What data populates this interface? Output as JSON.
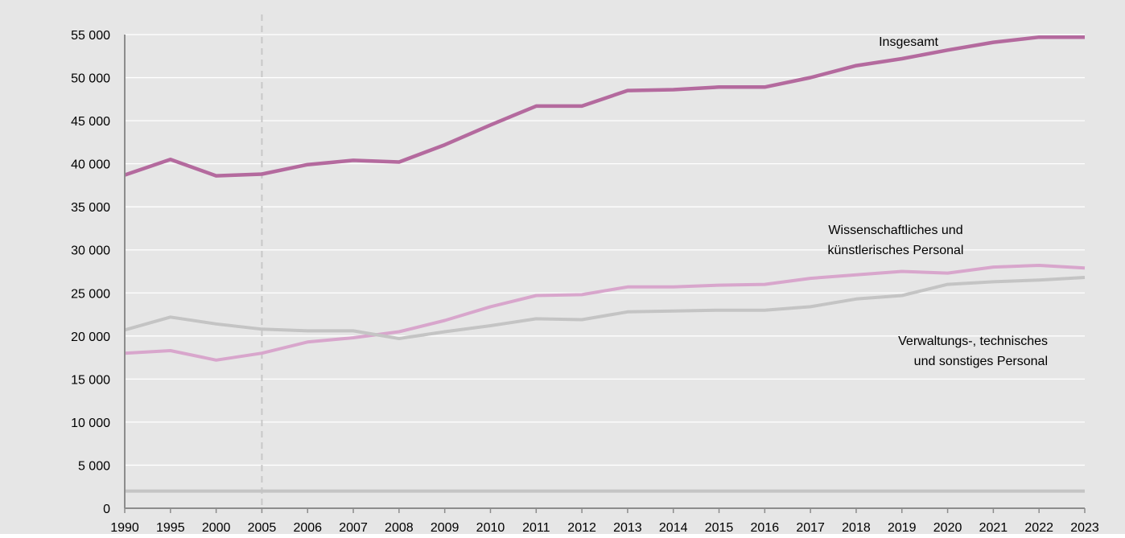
{
  "chart_data": {
    "type": "line",
    "title": "",
    "xlabel": "",
    "ylabel": "",
    "categories": [
      "1990",
      "1995",
      "2000",
      "2005",
      "2006",
      "2007",
      "2008",
      "2009",
      "2010",
      "2011",
      "2012",
      "2013",
      "2014",
      "2015",
      "2016",
      "2017",
      "2018",
      "2019",
      "2020",
      "2021",
      "2022",
      "2023"
    ],
    "y_ticks": [
      "0",
      "5 000",
      "10 000",
      "15 000",
      "20 000",
      "25 000",
      "30 000",
      "35 000",
      "40 000",
      "45 000",
      "50 000",
      "55 000"
    ],
    "ylim": [
      0,
      55000
    ],
    "grid": true,
    "axis_break": "2000-2005 (dashed vertical marker at 2005)",
    "series": [
      {
        "name": "Insgesamt",
        "color": "#b46a9e",
        "values": [
          38700,
          40500,
          38600,
          38800,
          39900,
          40400,
          40200,
          42200,
          44500,
          46700,
          46700,
          48500,
          48600,
          48900,
          48900,
          50000,
          51400,
          52200,
          53200,
          54100,
          54700,
          54700
        ]
      },
      {
        "name": "Wissenschaftliches und künstlerisches Personal",
        "color": "#d8a6cc",
        "values": [
          18000,
          18300,
          17200,
          18000,
          19300,
          19800,
          20500,
          21800,
          23400,
          24700,
          24800,
          25700,
          25700,
          25900,
          26000,
          26700,
          27100,
          27500,
          27300,
          28000,
          28200,
          27900
        ]
      },
      {
        "name": "Verwaltungs-, technisches und sonstiges Personal",
        "color": "#c4c4c4",
        "values": [
          20700,
          22200,
          21400,
          20800,
          20600,
          20600,
          19700,
          20500,
          21200,
          22000,
          21900,
          22800,
          22900,
          23000,
          23000,
          23400,
          24300,
          24700,
          26000,
          26300,
          26500,
          26800
        ]
      },
      {
        "name": "",
        "color": "#c4c4c4",
        "values": [
          2000,
          2000,
          2000,
          2000,
          2000,
          2000,
          2000,
          2000,
          2000,
          2000,
          2000,
          2000,
          2000,
          2000,
          2000,
          2000,
          2000,
          2000,
          2000,
          2000,
          2000,
          2000
        ]
      }
    ],
    "annotations": {
      "insgesamt": "Insgesamt",
      "wiss_line1": "Wissenschaftliches und",
      "wiss_line2": "künstlerisches Personal",
      "verw_line1": "Verwaltungs-, technisches",
      "verw_line2": "und sonstiges Personal"
    },
    "colors": {
      "background": "#e6e6e6",
      "grid": "#ffffff",
      "axis": "#8c8c8c",
      "marker": "#c8c8c8"
    }
  }
}
